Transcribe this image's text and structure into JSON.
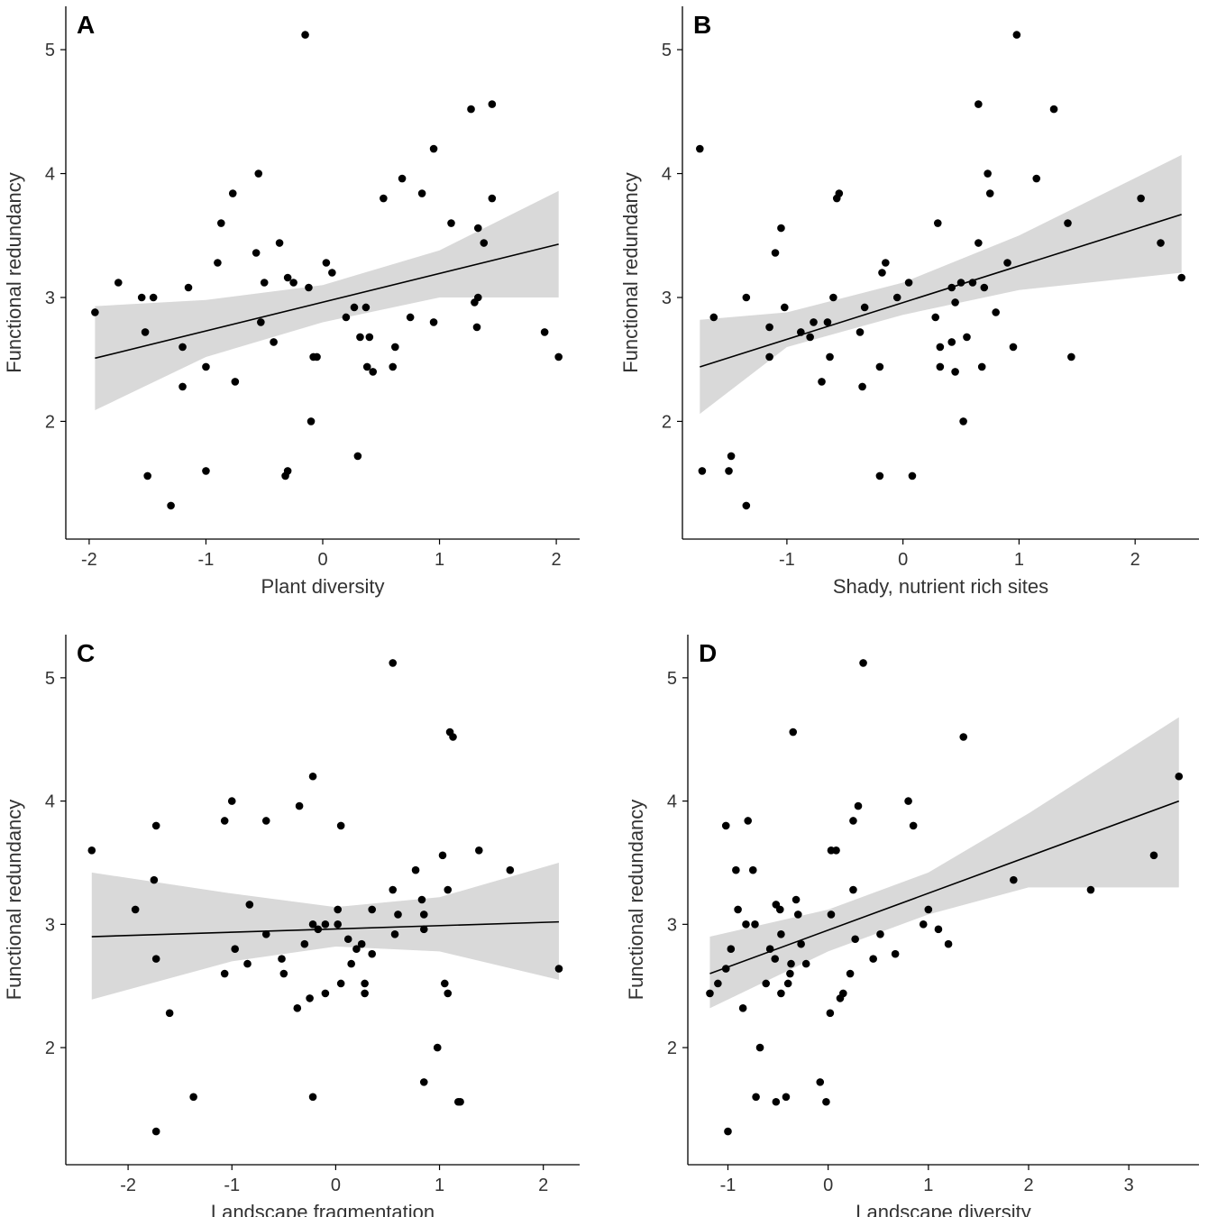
{
  "chart_data": [
    {
      "id": "A",
      "type": "scatter",
      "panel_label": "A",
      "xlabel": "Plant diversity",
      "ylabel": "Functional  redundancy",
      "xlim": [
        -2.2,
        2.2
      ],
      "ylim": [
        1.05,
        5.35
      ],
      "xticks": [
        -2,
        -1,
        0,
        1,
        2
      ],
      "xtick_labels": [
        "-2",
        "-1",
        "0",
        "1",
        "2"
      ],
      "yticks": [
        2,
        3,
        4,
        5
      ],
      "ytick_labels": [
        "2",
        "3",
        "4",
        "5"
      ],
      "fit": {
        "x": [
          -1.95,
          2.02
        ],
        "y": [
          2.51,
          3.43
        ]
      },
      "ci_upper": [
        [
          -1.95,
          2.93
        ],
        [
          -1.0,
          2.98
        ],
        [
          0.0,
          3.1
        ],
        [
          1.0,
          3.38
        ],
        [
          2.02,
          3.86
        ]
      ],
      "ci_lower": [
        [
          -1.95,
          2.09
        ],
        [
          -1.0,
          2.52
        ],
        [
          0.0,
          2.8
        ],
        [
          1.0,
          3.0
        ],
        [
          2.02,
          3.0
        ]
      ],
      "points": [
        [
          -1.95,
          2.88
        ],
        [
          -1.75,
          3.12
        ],
        [
          -1.55,
          3.0
        ],
        [
          -1.52,
          2.72
        ],
        [
          -1.5,
          1.56
        ],
        [
          -1.45,
          3.0
        ],
        [
          -1.3,
          1.32
        ],
        [
          -1.2,
          2.6
        ],
        [
          -1.2,
          2.28
        ],
        [
          -1.15,
          3.08
        ],
        [
          -1.0,
          1.6
        ],
        [
          -1.0,
          2.44
        ],
        [
          -0.9,
          3.28
        ],
        [
          -0.87,
          3.6
        ],
        [
          -0.77,
          3.84
        ],
        [
          -0.75,
          2.32
        ],
        [
          -0.57,
          3.36
        ],
        [
          -0.55,
          4.0
        ],
        [
          -0.53,
          2.8
        ],
        [
          -0.5,
          3.12
        ],
        [
          -0.42,
          2.64
        ],
        [
          -0.37,
          3.44
        ],
        [
          -0.32,
          1.56
        ],
        [
          -0.3,
          3.16
        ],
        [
          -0.3,
          1.6
        ],
        [
          -0.25,
          3.12
        ],
        [
          -0.15,
          5.12
        ],
        [
          -0.12,
          3.08
        ],
        [
          -0.1,
          2.0
        ],
        [
          -0.08,
          2.52
        ],
        [
          -0.05,
          2.52
        ],
        [
          0.03,
          3.28
        ],
        [
          0.08,
          3.2
        ],
        [
          0.2,
          2.84
        ],
        [
          0.27,
          2.92
        ],
        [
          0.3,
          1.72
        ],
        [
          0.32,
          2.68
        ],
        [
          0.37,
          2.92
        ],
        [
          0.38,
          2.44
        ],
        [
          0.4,
          2.68
        ],
        [
          0.43,
          2.4
        ],
        [
          0.52,
          3.8
        ],
        [
          0.6,
          2.44
        ],
        [
          0.62,
          2.6
        ],
        [
          0.68,
          3.96
        ],
        [
          0.75,
          2.84
        ],
        [
          0.85,
          3.84
        ],
        [
          0.95,
          4.2
        ],
        [
          0.95,
          2.8
        ],
        [
          1.1,
          3.6
        ],
        [
          1.27,
          4.52
        ],
        [
          1.3,
          2.96
        ],
        [
          1.32,
          2.76
        ],
        [
          1.33,
          3.0
        ],
        [
          1.33,
          3.56
        ],
        [
          1.38,
          3.44
        ],
        [
          1.45,
          4.56
        ],
        [
          1.45,
          3.8
        ],
        [
          1.9,
          2.72
        ],
        [
          2.02,
          2.52
        ]
      ]
    },
    {
      "id": "B",
      "type": "scatter",
      "panel_label": "B",
      "xlabel": "Shady, nutrient rich sites",
      "ylabel": "Functional  redundancy",
      "xlim": [
        -1.9,
        2.55
      ],
      "ylim": [
        1.05,
        5.35
      ],
      "xticks": [
        -1,
        0,
        1,
        2
      ],
      "xtick_labels": [
        "-1",
        "0",
        "1",
        "2"
      ],
      "yticks": [
        2,
        3,
        4,
        5
      ],
      "ytick_labels": [
        "2",
        "3",
        "4",
        "5"
      ],
      "fit": {
        "x": [
          -1.75,
          2.4
        ],
        "y": [
          2.44,
          3.67
        ]
      },
      "ci_upper": [
        [
          -1.75,
          2.82
        ],
        [
          -1.0,
          2.88
        ],
        [
          0.0,
          3.12
        ],
        [
          1.0,
          3.5
        ],
        [
          2.4,
          4.15
        ]
      ],
      "ci_lower": [
        [
          -1.75,
          2.06
        ],
        [
          -1.0,
          2.6
        ],
        [
          0.0,
          2.86
        ],
        [
          1.0,
          3.06
        ],
        [
          2.4,
          3.2
        ]
      ],
      "points": [
        [
          -1.75,
          4.2
        ],
        [
          -1.73,
          1.6
        ],
        [
          -1.63,
          2.84
        ],
        [
          -1.5,
          1.6
        ],
        [
          -1.48,
          1.72
        ],
        [
          -1.35,
          1.32
        ],
        [
          -1.35,
          3.0
        ],
        [
          -1.15,
          2.76
        ],
        [
          -1.15,
          2.52
        ],
        [
          -1.1,
          3.36
        ],
        [
          -1.05,
          3.56
        ],
        [
          -1.02,
          2.92
        ],
        [
          -0.88,
          2.72
        ],
        [
          -0.8,
          2.68
        ],
        [
          -0.77,
          2.8
        ],
        [
          -0.7,
          2.32
        ],
        [
          -0.65,
          2.8
        ],
        [
          -0.63,
          2.52
        ],
        [
          -0.6,
          3.0
        ],
        [
          -0.57,
          3.8
        ],
        [
          -0.55,
          3.84
        ],
        [
          -0.37,
          2.72
        ],
        [
          -0.35,
          2.28
        ],
        [
          -0.33,
          2.92
        ],
        [
          -0.2,
          2.44
        ],
        [
          -0.2,
          1.56
        ],
        [
          -0.18,
          3.2
        ],
        [
          -0.15,
          3.28
        ],
        [
          -0.05,
          3.0
        ],
        [
          0.05,
          3.12
        ],
        [
          0.08,
          1.56
        ],
        [
          0.28,
          2.84
        ],
        [
          0.3,
          3.6
        ],
        [
          0.32,
          2.6
        ],
        [
          0.32,
          2.44
        ],
        [
          0.42,
          3.08
        ],
        [
          0.42,
          2.64
        ],
        [
          0.45,
          2.96
        ],
        [
          0.45,
          2.4
        ],
        [
          0.5,
          3.12
        ],
        [
          0.52,
          2.0
        ],
        [
          0.55,
          2.68
        ],
        [
          0.6,
          3.12
        ],
        [
          0.65,
          3.44
        ],
        [
          0.65,
          4.56
        ],
        [
          0.68,
          2.44
        ],
        [
          0.7,
          3.08
        ],
        [
          0.73,
          4.0
        ],
        [
          0.75,
          3.84
        ],
        [
          0.8,
          2.88
        ],
        [
          0.9,
          3.28
        ],
        [
          0.95,
          2.6
        ],
        [
          0.98,
          5.12
        ],
        [
          1.15,
          3.96
        ],
        [
          1.3,
          4.52
        ],
        [
          1.42,
          3.6
        ],
        [
          1.45,
          2.52
        ],
        [
          2.05,
          3.8
        ],
        [
          2.22,
          3.44
        ],
        [
          2.4,
          3.16
        ]
      ]
    },
    {
      "id": "C",
      "type": "scatter",
      "panel_label": "C",
      "xlabel": "Landscape fragmentation",
      "ylabel": "Functional  redundancy",
      "xlim": [
        -2.6,
        2.35
      ],
      "ylim": [
        1.05,
        5.35
      ],
      "xticks": [
        -2,
        -1,
        0,
        1,
        2
      ],
      "xtick_labels": [
        "-2",
        "-1",
        "0",
        "1",
        "2"
      ],
      "yticks": [
        2,
        3,
        4,
        5
      ],
      "ytick_labels": [
        "2",
        "3",
        "4",
        "5"
      ],
      "fit": {
        "x": [
          -2.35,
          2.15
        ],
        "y": [
          2.9,
          3.02
        ]
      },
      "ci_upper": [
        [
          -2.35,
          3.42
        ],
        [
          -1.0,
          3.25
        ],
        [
          0.0,
          3.14
        ],
        [
          1.0,
          3.22
        ],
        [
          2.15,
          3.5
        ]
      ],
      "ci_lower": [
        [
          -2.35,
          2.39
        ],
        [
          -1.0,
          2.7
        ],
        [
          0.0,
          2.82
        ],
        [
          1.0,
          2.78
        ],
        [
          2.15,
          2.55
        ]
      ],
      "points": [
        [
          -2.35,
          3.6
        ],
        [
          -1.93,
          3.12
        ],
        [
          -1.75,
          3.36
        ],
        [
          -1.73,
          3.8
        ],
        [
          -1.73,
          2.72
        ],
        [
          -1.73,
          1.32
        ],
        [
          -1.6,
          2.28
        ],
        [
          -1.37,
          1.6
        ],
        [
          -1.07,
          3.84
        ],
        [
          -1.07,
          2.6
        ],
        [
          -1.0,
          4.0
        ],
        [
          -0.97,
          2.8
        ],
        [
          -0.85,
          2.68
        ],
        [
          -0.83,
          3.16
        ],
        [
          -0.67,
          3.84
        ],
        [
          -0.67,
          2.92
        ],
        [
          -0.52,
          2.72
        ],
        [
          -0.5,
          2.6
        ],
        [
          -0.37,
          2.32
        ],
        [
          -0.35,
          3.96
        ],
        [
          -0.3,
          2.84
        ],
        [
          -0.25,
          2.4
        ],
        [
          -0.22,
          1.6
        ],
        [
          -0.22,
          4.2
        ],
        [
          -0.22,
          3.0
        ],
        [
          -0.17,
          2.96
        ],
        [
          -0.1,
          3.0
        ],
        [
          -0.1,
          2.44
        ],
        [
          0.02,
          3.12
        ],
        [
          0.02,
          3.0
        ],
        [
          0.05,
          3.8
        ],
        [
          0.05,
          2.52
        ],
        [
          0.12,
          2.88
        ],
        [
          0.15,
          2.68
        ],
        [
          0.2,
          2.8
        ],
        [
          0.25,
          2.84
        ],
        [
          0.28,
          2.44
        ],
        [
          0.28,
          2.52
        ],
        [
          0.35,
          3.12
        ],
        [
          0.35,
          2.76
        ],
        [
          0.55,
          3.28
        ],
        [
          0.55,
          5.12
        ],
        [
          0.57,
          2.92
        ],
        [
          0.6,
          3.08
        ],
        [
          0.77,
          3.44
        ],
        [
          0.83,
          3.2
        ],
        [
          0.85,
          3.08
        ],
        [
          0.85,
          2.96
        ],
        [
          0.85,
          1.72
        ],
        [
          0.98,
          2.0
        ],
        [
          1.03,
          3.56
        ],
        [
          1.05,
          2.52
        ],
        [
          1.08,
          2.44
        ],
        [
          1.08,
          3.28
        ],
        [
          1.1,
          4.56
        ],
        [
          1.13,
          4.52
        ],
        [
          1.18,
          1.56
        ],
        [
          1.2,
          1.56
        ],
        [
          1.38,
          3.6
        ],
        [
          1.68,
          3.44
        ],
        [
          2.15,
          2.64
        ]
      ]
    },
    {
      "id": "D",
      "type": "scatter",
      "panel_label": "D",
      "xlabel": "Landscape diversity",
      "ylabel": "Functional  redundancy",
      "xlim": [
        -1.4,
        3.7
      ],
      "ylim": [
        1.05,
        5.35
      ],
      "xticks": [
        -1,
        0,
        1,
        2,
        3
      ],
      "xtick_labels": [
        "-1",
        "0",
        "1",
        "2",
        "3"
      ],
      "yticks": [
        2,
        3,
        4,
        5
      ],
      "ytick_labels": [
        "2",
        "3",
        "4",
        "5"
      ],
      "fit": {
        "x": [
          -1.18,
          3.5
        ],
        "y": [
          2.6,
          4.0
        ]
      },
      "ci_upper": [
        [
          -1.18,
          2.9
        ],
        [
          0.0,
          3.12
        ],
        [
          1.0,
          3.42
        ],
        [
          2.0,
          3.9
        ],
        [
          3.5,
          4.68
        ]
      ],
      "ci_lower": [
        [
          -1.18,
          2.32
        ],
        [
          0.0,
          2.78
        ],
        [
          1.0,
          3.08
        ],
        [
          2.0,
          3.3
        ],
        [
          3.5,
          3.3
        ]
      ],
      "points": [
        [
          -1.18,
          2.44
        ],
        [
          -1.1,
          2.52
        ],
        [
          -1.02,
          2.64
        ],
        [
          -1.02,
          3.8
        ],
        [
          -1.0,
          1.32
        ],
        [
          -0.97,
          2.8
        ],
        [
          -0.92,
          3.44
        ],
        [
          -0.9,
          3.12
        ],
        [
          -0.85,
          2.32
        ],
        [
          -0.82,
          3.0
        ],
        [
          -0.8,
          3.84
        ],
        [
          -0.75,
          3.44
        ],
        [
          -0.73,
          3.0
        ],
        [
          -0.72,
          1.6
        ],
        [
          -0.68,
          2.0
        ],
        [
          -0.62,
          2.52
        ],
        [
          -0.58,
          2.8
        ],
        [
          -0.53,
          2.72
        ],
        [
          -0.52,
          1.56
        ],
        [
          -0.52,
          3.16
        ],
        [
          -0.48,
          3.12
        ],
        [
          -0.47,
          2.92
        ],
        [
          -0.47,
          2.44
        ],
        [
          -0.42,
          1.6
        ],
        [
          -0.4,
          2.52
        ],
        [
          -0.38,
          2.6
        ],
        [
          -0.37,
          2.68
        ],
        [
          -0.35,
          4.56
        ],
        [
          -0.32,
          3.2
        ],
        [
          -0.3,
          3.08
        ],
        [
          -0.27,
          2.84
        ],
        [
          -0.22,
          2.68
        ],
        [
          -0.08,
          1.72
        ],
        [
          -0.02,
          1.56
        ],
        [
          0.02,
          2.28
        ],
        [
          0.03,
          3.6
        ],
        [
          0.03,
          3.08
        ],
        [
          0.08,
          3.6
        ],
        [
          0.12,
          2.4
        ],
        [
          0.15,
          2.44
        ],
        [
          0.22,
          2.6
        ],
        [
          0.25,
          3.84
        ],
        [
          0.25,
          3.28
        ],
        [
          0.27,
          2.88
        ],
        [
          0.3,
          3.96
        ],
        [
          0.35,
          5.12
        ],
        [
          0.45,
          2.72
        ],
        [
          0.52,
          2.92
        ],
        [
          0.67,
          2.76
        ],
        [
          0.8,
          4.0
        ],
        [
          0.85,
          3.8
        ],
        [
          0.95,
          3.0
        ],
        [
          1.0,
          3.12
        ],
        [
          1.1,
          2.96
        ],
        [
          1.2,
          2.84
        ],
        [
          1.35,
          4.52
        ],
        [
          1.85,
          3.36
        ],
        [
          2.62,
          3.28
        ],
        [
          3.25,
          3.56
        ],
        [
          3.5,
          4.2
        ]
      ]
    }
  ]
}
